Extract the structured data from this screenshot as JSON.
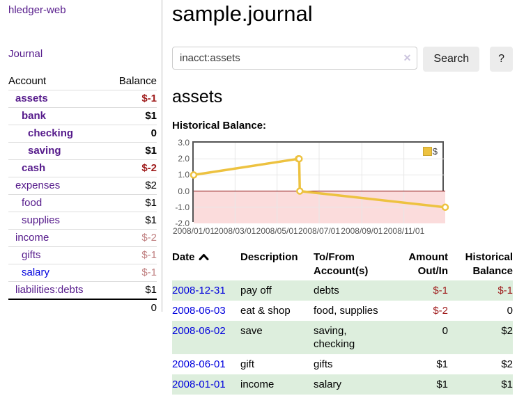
{
  "brand": "hledger-web",
  "nav": {
    "journal": "Journal"
  },
  "sidebar": {
    "header": {
      "account": "Account",
      "balance": "Balance"
    },
    "accounts": [
      {
        "name": "assets",
        "level": 1,
        "in_acct": true,
        "negative": true,
        "unvisited": false,
        "amount": "$-1"
      },
      {
        "name": "bank",
        "level": 2,
        "in_acct": true,
        "negative": false,
        "unvisited": false,
        "amount": "$1"
      },
      {
        "name": "checking",
        "level": 3,
        "in_acct": true,
        "negative": false,
        "unvisited": false,
        "amount": "0"
      },
      {
        "name": "saving",
        "level": 3,
        "in_acct": true,
        "negative": false,
        "unvisited": false,
        "amount": "$1"
      },
      {
        "name": "cash",
        "level": 2,
        "in_acct": true,
        "negative": true,
        "unvisited": false,
        "amount": "$-2"
      },
      {
        "name": "expenses",
        "level": 1,
        "in_acct": false,
        "negative": false,
        "unvisited": false,
        "amount": "$2"
      },
      {
        "name": "food",
        "level": 2,
        "in_acct": false,
        "negative": false,
        "unvisited": false,
        "amount": "$1"
      },
      {
        "name": "supplies",
        "level": 2,
        "in_acct": false,
        "negative": false,
        "unvisited": false,
        "amount": "$1"
      },
      {
        "name": "income",
        "level": 1,
        "in_acct": false,
        "negative": true,
        "unvisited": false,
        "amount": "$-2"
      },
      {
        "name": "gifts",
        "level": 2,
        "in_acct": false,
        "negative": true,
        "unvisited": false,
        "amount": "$-1"
      },
      {
        "name": "salary",
        "level": 2,
        "in_acct": false,
        "negative": true,
        "unvisited": true,
        "amount": "$-1"
      },
      {
        "name": "liabilities:debts",
        "level": 1,
        "in_acct": false,
        "negative": false,
        "unvisited": false,
        "amount": "$1"
      }
    ],
    "total": "0"
  },
  "main": {
    "title": "sample.journal",
    "search": {
      "value": "inacct:assets",
      "clear_icon": "✕",
      "button": "Search",
      "help_button": "?"
    },
    "account_title": "assets",
    "chart_label": "Historical Balance:"
  },
  "chart_data": {
    "type": "line",
    "title": "Historical Balance:",
    "series": [
      {
        "name": "$",
        "points": [
          [
            "2008-01-01",
            1
          ],
          [
            "2008-06-01",
            2
          ],
          [
            "2008-06-02",
            2
          ],
          [
            "2008-06-03",
            0
          ],
          [
            "2008-12-31",
            -1
          ]
        ]
      }
    ],
    "x_start": "2008-01-01",
    "x_end": "2008-12-31",
    "x_ticks": [
      "2008/01/01",
      "2008/03/01",
      "2008/05/01",
      "2008/07/01",
      "2008/09/01",
      "2008/11/01"
    ],
    "y_ticks": [
      "3.0",
      "2.0",
      "1.0",
      "0.0",
      "-1.0",
      "-2.0"
    ],
    "ylim": [
      -2,
      3
    ],
    "grid": true,
    "legend_position": "top-right",
    "legend": "$",
    "line_color": "#edc240",
    "marker_fill": "#ffffff",
    "grid_color": "#e7e7e7",
    "negative_fill": "#fbdcdc",
    "zero_line_color": "#8b0000"
  },
  "register": {
    "columns": {
      "date": "Date",
      "description": "Description",
      "tofrom": "To/From Account(s)",
      "amount": "Amount Out/In",
      "balance": "Historical Balance"
    },
    "rows": [
      {
        "date": "2008-12-31",
        "desc": "pay off",
        "tofrom": "debts",
        "amount": "$-1",
        "amount_neg": true,
        "balance": "$-1",
        "balance_neg": true
      },
      {
        "date": "2008-06-03",
        "desc": "eat & shop",
        "tofrom": "food, supplies",
        "amount": "$-2",
        "amount_neg": true,
        "balance": "0",
        "balance_neg": false
      },
      {
        "date": "2008-06-02",
        "desc": "save",
        "tofrom": "saving, checking",
        "amount": "0",
        "amount_neg": false,
        "balance": "$2",
        "balance_neg": false
      },
      {
        "date": "2008-06-01",
        "desc": "gift",
        "tofrom": "gifts",
        "amount": "$1",
        "amount_neg": false,
        "balance": "$2",
        "balance_neg": false
      },
      {
        "date": "2008-01-01",
        "desc": "income",
        "tofrom": "salary",
        "amount": "$1",
        "amount_neg": false,
        "balance": "$1",
        "balance_neg": false
      }
    ]
  },
  "colors": {
    "link_visited": "#551a8b",
    "link_new": "#0000dd",
    "negative_strong": "#9e1a1a",
    "negative_soft": "#c08081",
    "row_green": "#ddeedd",
    "button_bg": "#ececec"
  }
}
